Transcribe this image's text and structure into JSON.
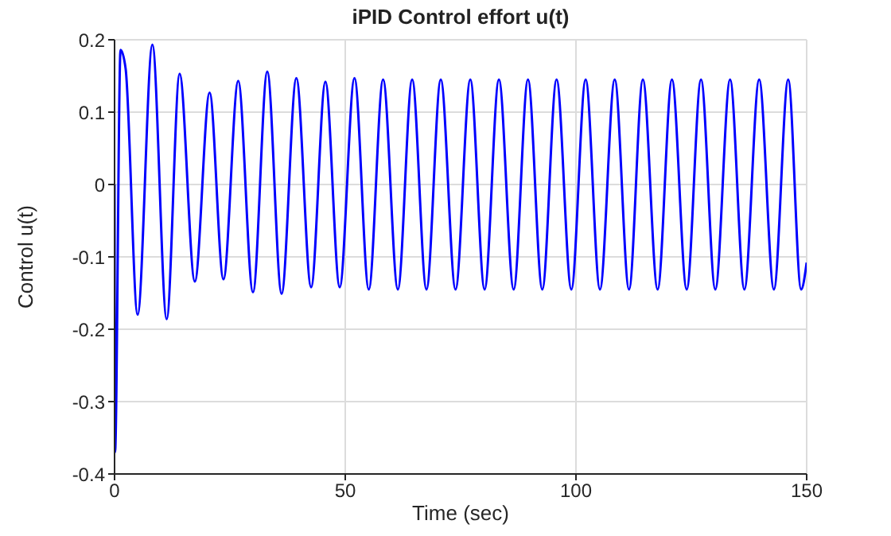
{
  "chart_data": {
    "type": "line",
    "title": "iPID Control effort u(t)",
    "xlabel": "Time (sec)",
    "ylabel": "Control u(t)",
    "xlim": [
      0,
      150
    ],
    "xticks": [
      0,
      50,
      100,
      150
    ],
    "ylim": [
      -0.4,
      0.2
    ],
    "yticks": [
      -0.4,
      -0.3,
      -0.2,
      -0.1,
      0,
      0.1,
      0.2
    ],
    "grid": true,
    "legend": false,
    "marker": "none",
    "line_style": "solid",
    "series": [
      {
        "color": "#0000ff",
        "x": [
          0,
          0.1,
          1.3,
          2.4,
          5.0,
          8.2,
          11.3,
          14.1,
          17.4,
          20.6,
          23.6,
          26.8,
          30.0,
          33.1,
          36.2,
          39.4,
          42.6,
          45.7,
          48.8,
          52.0,
          55.1,
          58.2,
          61.4,
          64.5,
          67.6,
          70.7,
          73.9,
          77.1,
          80.2,
          83.3,
          86.5,
          89.6,
          92.7,
          95.8,
          99.0,
          102.1,
          105.2,
          108.4,
          111.5,
          114.5,
          117.7,
          120.8,
          124.0,
          127.1,
          130.2,
          133.4,
          136.5,
          139.7,
          142.9,
          146.0,
          148.8,
          150
        ],
        "values": [
          0,
          -0.37,
          0.186,
          0.16,
          -0.18,
          0.193,
          -0.186,
          0.153,
          -0.134,
          0.127,
          -0.131,
          0.143,
          -0.149,
          0.156,
          -0.151,
          0.147,
          -0.142,
          0.142,
          -0.142,
          0.147,
          -0.145,
          0.145,
          -0.145,
          0.145,
          -0.145,
          0.145,
          -0.145,
          0.145,
          -0.145,
          0.145,
          -0.145,
          0.145,
          -0.145,
          0.145,
          -0.145,
          0.145,
          -0.145,
          0.145,
          -0.145,
          0.145,
          -0.145,
          0.145,
          -0.145,
          0.145,
          -0.145,
          0.145,
          -0.145,
          0.145,
          -0.145,
          0.145,
          -0.145,
          -0.108
        ]
      }
    ]
  }
}
